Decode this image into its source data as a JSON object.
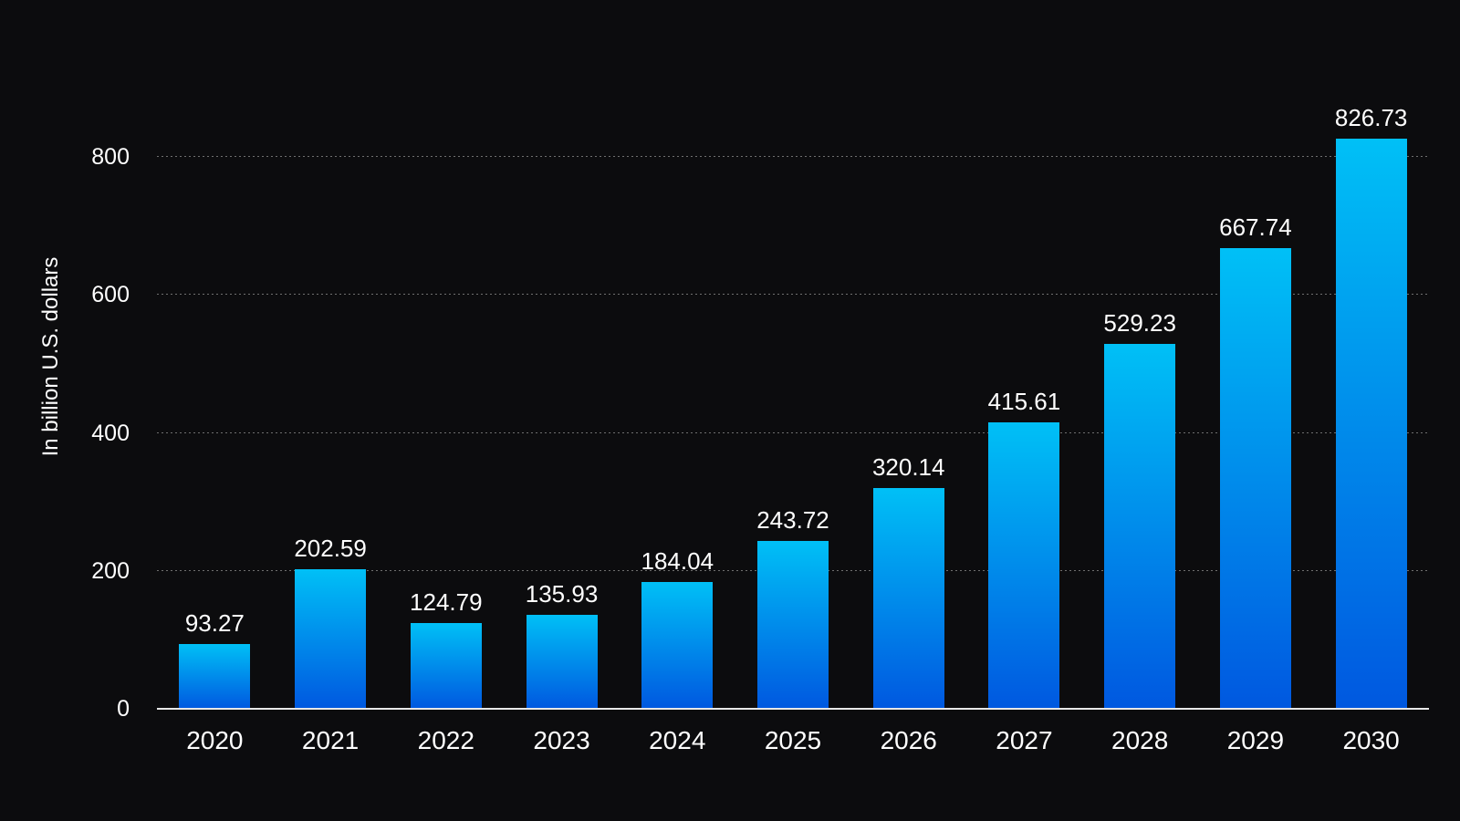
{
  "chart_data": {
    "type": "bar",
    "title": "",
    "xlabel": "",
    "ylabel": "In billion U.S. dollars",
    "categories": [
      "2020",
      "2021",
      "2022",
      "2023",
      "2024",
      "2025",
      "2026",
      "2027",
      "2028",
      "2029",
      "2030"
    ],
    "values": [
      93.27,
      202.59,
      124.79,
      135.93,
      184.04,
      243.72,
      320.14,
      415.61,
      529.23,
      667.74,
      826.73
    ],
    "value_labels": [
      "93.27",
      "202.59",
      "124.79",
      "135.93",
      "184.04",
      "243.72",
      "320.14",
      "415.61",
      "529.23",
      "667.74",
      "826.73"
    ],
    "yticks": [
      0,
      200,
      400,
      600,
      800
    ],
    "ylim": [
      0,
      880
    ],
    "grid": "horizontal-dotted",
    "legend": "none",
    "colors": {
      "background": "#0c0c0e",
      "bar_gradient_top": "#00c0f6",
      "bar_gradient_bottom": "#0058e0",
      "text": "#ffffff",
      "gridline": "#6f6f6f",
      "axis_line": "#e8e8e8"
    }
  }
}
